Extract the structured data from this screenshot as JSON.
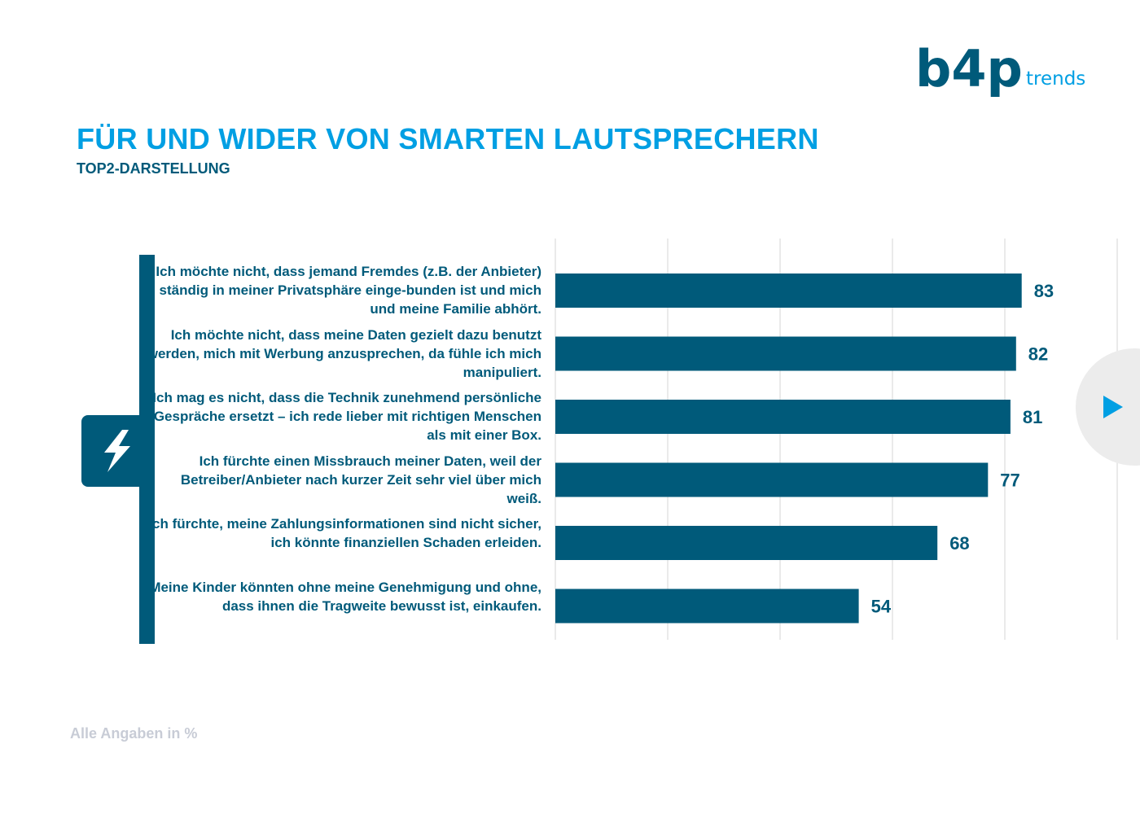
{
  "header": {
    "logo_text": "b4p",
    "logo_suffix": "trends"
  },
  "chart_data": {
    "type": "bar",
    "orientation": "horizontal",
    "title": "FÜR UND WIDER VON SMARTEN LAUTSPRECHERN",
    "subtitle": "TOP2-DARSTELLUNG",
    "categories": [
      "Ich möchte nicht, dass jemand Fremdes (z.B. der Anbieter) ständig in meiner Privatsphäre einge-bunden ist und mich und meine Familie abhört.",
      "Ich möchte nicht, dass meine Daten gezielt dazu benutzt werden, mich mit Werbung anzusprechen, da fühle ich mich manipuliert.",
      "Ich mag es nicht, dass die Technik zunehmend persönliche Gespräche ersetzt – ich rede lieber mit richtigen Menschen als mit einer Box.",
      "Ich fürchte einen Missbrauch meiner Daten, weil der Betreiber/Anbieter nach kurzer Zeit sehr viel über mich weiß.",
      "Ich fürchte, meine Zahlungsinformationen sind nicht sicher, ich könnte finanziellen Schaden erleiden.",
      "Meine Kinder könnten ohne meine Genehmigung und ohne, dass ihnen die Tragweite bewusst ist, einkaufen."
    ],
    "values": [
      83,
      82,
      81,
      77,
      68,
      54
    ],
    "xlim": [
      0,
      100
    ],
    "grid": true,
    "legend": "none",
    "bar_color": "#005a7a",
    "footnote": "Alle Angaben in %"
  },
  "icons": {
    "category_icon": "lightning-bolt-icon",
    "nav_icon": "play-arrow-icon"
  },
  "colors": {
    "primary": "#005a7a",
    "accent": "#009fe3",
    "muted": "#c8ccd6"
  }
}
